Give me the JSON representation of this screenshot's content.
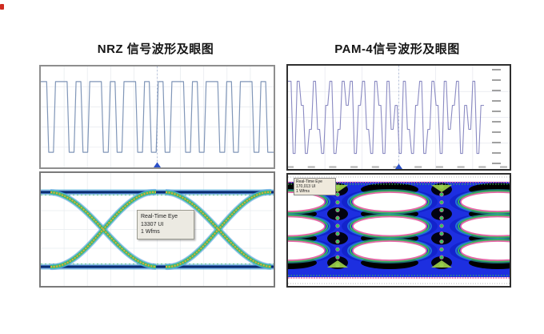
{
  "page": {
    "background": "#ffffff"
  },
  "left_section": {
    "title": "NRZ 信号波形及眼图",
    "eye_annotation": {
      "line1": "Real-Time Eye",
      "line2": "13307 UI",
      "line3": "1 Wfms"
    }
  },
  "right_section": {
    "title": "PAM-4信号波形及眼图",
    "eye_annotation": {
      "line1": "Real-Time Eye",
      "line2": "170,013 UI",
      "line3": "1 Wfms"
    }
  },
  "chart_data": [
    {
      "id": "nrz-waveform",
      "type": "line",
      "subtype": "nrz_digital_waveform",
      "title": "NRZ 信号波形",
      "levels": [
        0,
        1
      ],
      "bits": [
        1,
        0,
        1,
        1,
        0,
        1,
        0,
        1,
        1,
        0,
        1,
        0,
        1,
        1,
        0,
        1,
        0,
        1,
        0,
        1,
        1,
        0,
        1,
        0,
        1,
        1,
        0,
        1,
        0,
        1,
        1,
        0,
        1,
        0
      ],
      "line_color": "#8096b8",
      "grid": true,
      "grid_color": "#e5e9ee",
      "grid_cols": 10,
      "grid_rows": 5,
      "center_marker_color": "#2b50c8"
    },
    {
      "id": "nrz-eye",
      "type": "heatmap",
      "subtype": "eye_diagram",
      "title": "NRZ 眼图",
      "signal_levels": 2,
      "eyes_visible": 2,
      "annotation": [
        "Real-Time Eye",
        "13307 UI",
        "1 Wfms"
      ],
      "grid_cols": 10,
      "grid_rows": 6,
      "colors": {
        "background": "#ffffff",
        "rail_dark": "#0b2d6e",
        "rail_mid": "#2a63b8",
        "trace_outer": "#54b8de",
        "trace_mid": "#43ba64",
        "trace_core": "#e2a93e"
      }
    },
    {
      "id": "pam4-waveform",
      "type": "line",
      "subtype": "pam4_digital_waveform",
      "title": "PAM-4 信号波形",
      "levels": [
        0,
        1,
        2,
        3
      ],
      "symbols": [
        3,
        0,
        3,
        2,
        0,
        1,
        3,
        1,
        0,
        2,
        3,
        0,
        1,
        3,
        2,
        3,
        0,
        2,
        3,
        1,
        0,
        3,
        2,
        0,
        3,
        1,
        2,
        0,
        3,
        1,
        0,
        2,
        3,
        0,
        1,
        3,
        2,
        0,
        3,
        1,
        2,
        3,
        0,
        2,
        1,
        3,
        0,
        2
      ],
      "line_color": "#8a8ac2",
      "grid": true,
      "grid_color": "#e5e7ee",
      "grid_cols": 6,
      "grid_rows": 4,
      "y_axis_tick_count": 10,
      "x_axis_tick_count": 11,
      "center_marker_color": "#2b50c8"
    },
    {
      "id": "pam4-eye",
      "type": "heatmap",
      "subtype": "eye_diagram",
      "title": "PAM-4 眼图",
      "signal_levels": 4,
      "eye_rows": 3,
      "eyes_visible": 2,
      "annotation": [
        "Real-Time Eye",
        "170,013 UI",
        "1 Wfms"
      ],
      "colors": {
        "background": "#1d2fe0",
        "dense": "#000000",
        "opening": "#ffffff",
        "outline_pink": "#e668a8",
        "outline_green": "#38b45c",
        "outline_cyan": "#35c8e0",
        "dots_green": "#2ec85c",
        "triangle_green": "#9ed34a"
      }
    }
  ]
}
